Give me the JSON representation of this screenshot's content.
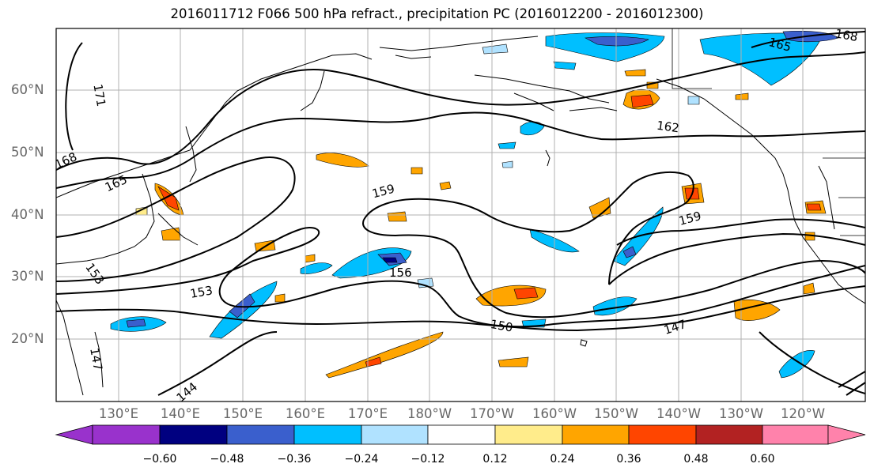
{
  "title": "2016011712 F066 500 hPa refract., precipitation PC (2016012200 - 2016012300)",
  "lat_labels": [
    "60°N",
    "50°N",
    "40°N",
    "30°N",
    "20°N"
  ],
  "lon_labels": [
    "130°E",
    "140°E",
    "150°E",
    "160°E",
    "170°E",
    "180°W",
    "170°W",
    "160°W",
    "150°W",
    "140°W",
    "130°W",
    "120°W"
  ],
  "contour_labels": [
    "171",
    "168",
    "165",
    "159",
    "162",
    "159",
    "156",
    "153",
    "153",
    "150",
    "147",
    "147",
    "144",
    "165",
    "168"
  ],
  "colorbar": {
    "ticks": [
      "−0.60",
      "−0.48",
      "−0.36",
      "−0.24",
      "−0.12",
      "0.12",
      "0.24",
      "0.36",
      "0.48",
      "0.60"
    ],
    "colors": [
      "#9932cc",
      "#000080",
      "#3a5fcd",
      "#00bfff",
      "#b0e2ff",
      "#ffffff",
      "#ffec8b",
      "#ffa500",
      "#ff4500",
      "#b22222",
      "#ff82ab"
    ]
  }
}
